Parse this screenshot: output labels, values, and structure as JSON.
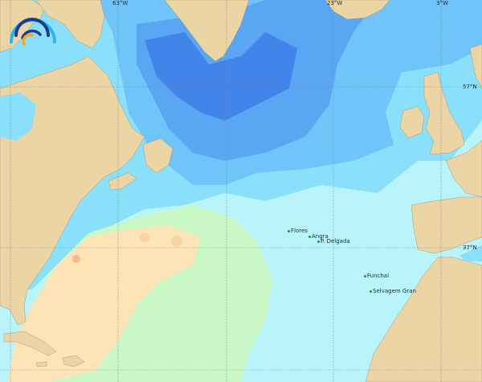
{
  "map": {
    "colors": {
      "land": "#ecd5a4",
      "ocean_base": "#b9f4fb",
      "ocean_light_blue": "#8ae0fb",
      "ocean_mid_blue": "#6fc4fa",
      "ocean_blue": "#5aa6f3",
      "ocean_deep_blue": "#4284ea",
      "warm_green": "#c9f8c6",
      "warm_beige": "#fde4b6",
      "warm_orange": "#f7b98a",
      "grid": "#808890"
    },
    "longitude_labels": [
      "63°W",
      "23°W",
      "3°W"
    ],
    "latitude_labels": [
      "57°N",
      "37°N"
    ],
    "places": [
      {
        "name": "Flores"
      },
      {
        "name": "Angra"
      },
      {
        "name": "P. Delgada"
      },
      {
        "name": "Funchal"
      },
      {
        "name": "Selvagem Gran"
      }
    ],
    "logo": {
      "icon": "wave-arcs-logo",
      "colors": [
        "#29b6ea",
        "#1e3c8c",
        "#f5a623"
      ]
    }
  }
}
